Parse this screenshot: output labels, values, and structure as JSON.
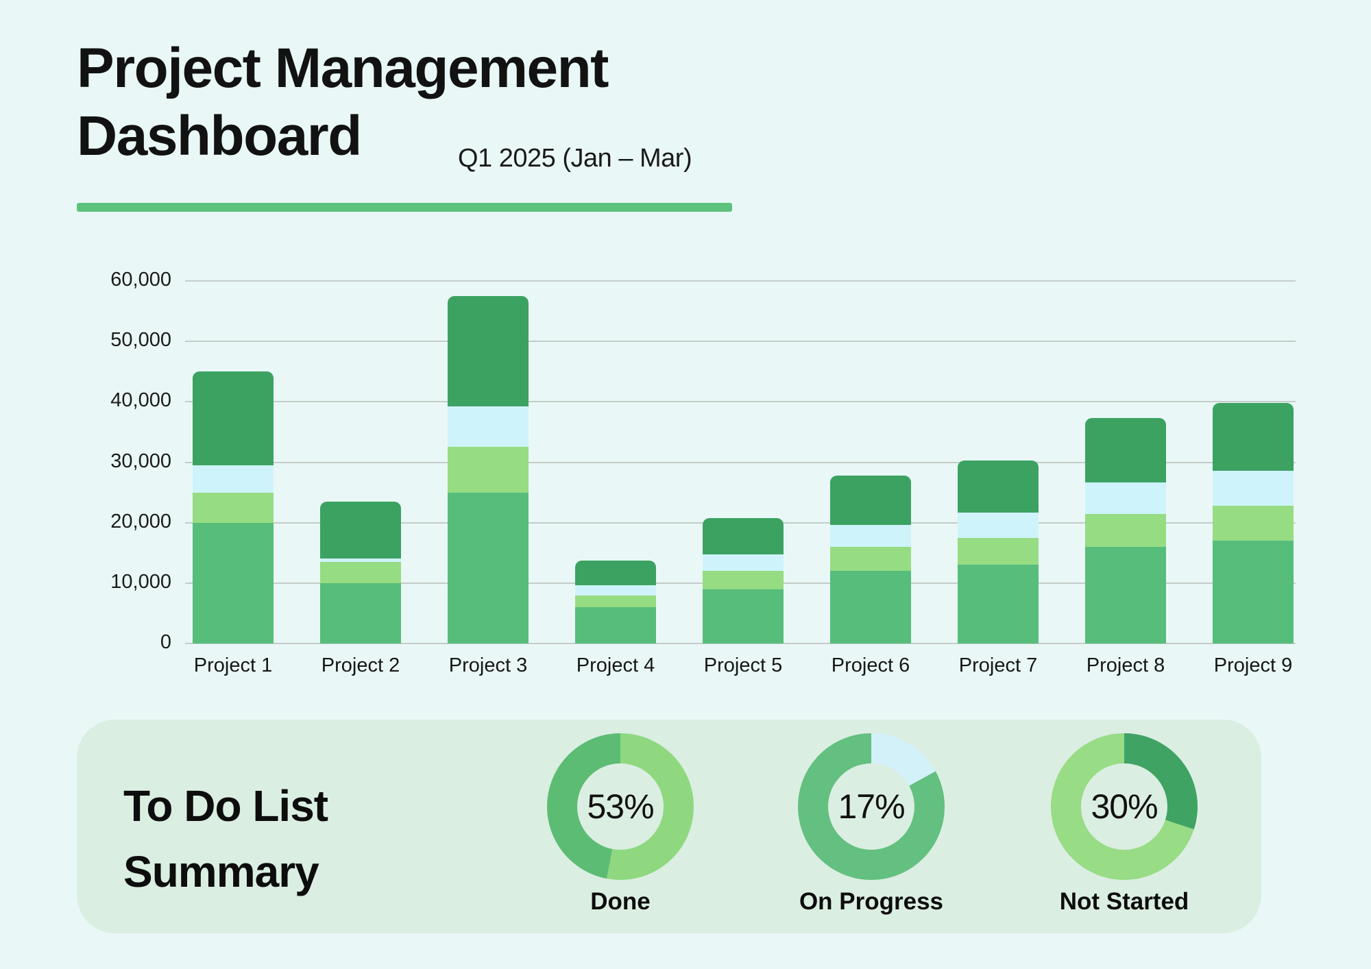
{
  "header": {
    "title_line1": "Project Management",
    "title_line2": "Dashboard",
    "subtitle": "Q1 2025 (Jan – Mar)",
    "underline_color": "#5CC27D"
  },
  "chart_data": {
    "type": "bar",
    "stacked": true,
    "title": "",
    "xlabel": "",
    "ylabel": "",
    "ylim": [
      0,
      60000
    ],
    "ytick_interval": 10000,
    "ytick_labels": [
      "0",
      "10,000",
      "20,000",
      "30,000",
      "40,000",
      "50,000",
      "60,000"
    ],
    "grid": true,
    "legend": "none",
    "categories": [
      "Project 1",
      "Project 2",
      "Project 3",
      "Project 4",
      "Project 5",
      "Project 6",
      "Project 7",
      "Project 8",
      "Project 9"
    ],
    "series": [
      {
        "name": "segment-green",
        "color": "#56BD7B",
        "values": [
          20000,
          10000,
          25000,
          6000,
          9000,
          12000,
          13000,
          16000,
          17000
        ]
      },
      {
        "name": "segment-light-green",
        "color": "#96DC83",
        "values": [
          5000,
          3500,
          7500,
          1900,
          3000,
          4000,
          4500,
          5400,
          5800
        ]
      },
      {
        "name": "segment-light-blue",
        "color": "#CFF3FA",
        "values": [
          4500,
          600,
          6800,
          1800,
          2700,
          3600,
          4200,
          5200,
          5800
        ]
      },
      {
        "name": "segment-dark-green",
        "color": "#3CA262",
        "values": [
          15500,
          9400,
          18200,
          4000,
          6100,
          8200,
          8600,
          10700,
          11200
        ]
      }
    ],
    "totals": [
      45000,
      23500,
      57500,
      13700,
      20800,
      27800,
      30300,
      37300,
      39800
    ]
  },
  "summary": {
    "title_line1": "To Do List",
    "title_line2": "Summary",
    "panel_bg": "#DBEEE2",
    "donuts": [
      {
        "label": "Done",
        "value": "53%",
        "percent": 53,
        "slice_color": "#8FD87F",
        "rest_color": "#5CBC74"
      },
      {
        "label": "On Progress",
        "value": "17%",
        "percent": 17,
        "slice_color": "#D3F1F9",
        "rest_color": "#63C080"
      },
      {
        "label": "Not Started",
        "value": "30%",
        "percent": 30,
        "slice_color": "#3FA363",
        "rest_color": "#98DC86"
      }
    ]
  },
  "colors": {
    "page_bg": "#E9F8F6",
    "gridline": "#C4CCC9",
    "text": "#121212"
  }
}
